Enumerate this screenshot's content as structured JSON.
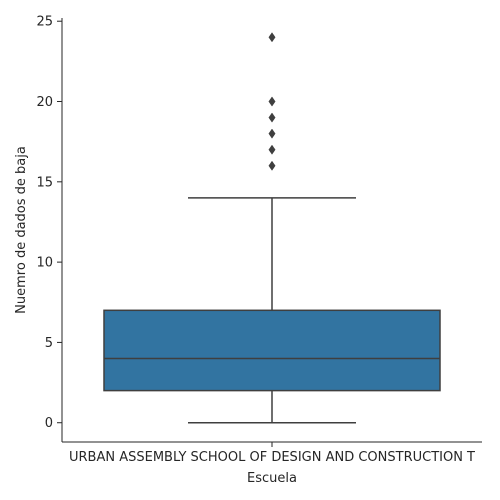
{
  "chart_data": {
    "type": "box",
    "xlabel": "Escuela",
    "ylabel": "Nuemro de dados de baja",
    "categories": [
      "URBAN ASSEMBLY SCHOOL OF DESIGN AND CONSTRUCTION T"
    ],
    "ylim": [
      -1.2,
      25.2
    ],
    "yticks": [
      0,
      5,
      10,
      15,
      20,
      25
    ],
    "grid": false,
    "box": {
      "whisker_low": 0,
      "q1": 2,
      "median": 4,
      "q3": 7,
      "whisker_high": 14,
      "outliers": [
        16,
        17,
        18,
        19,
        20,
        24
      ]
    },
    "colors": {
      "box_fill": "#3274a1",
      "line": "#3f3f3f",
      "axis": "#262626"
    }
  }
}
